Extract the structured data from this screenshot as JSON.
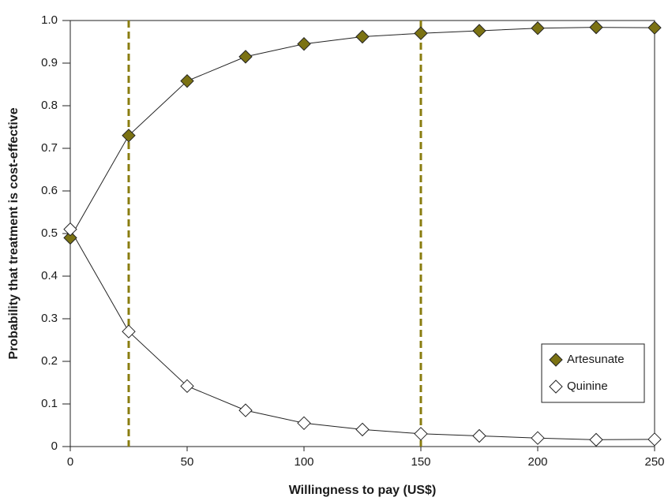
{
  "chart_data": {
    "type": "line",
    "x_label": "Willingness to pay (US$)",
    "y_label": "Probability that treatment is cost-effective",
    "x": [
      0,
      25,
      50,
      75,
      100,
      125,
      150,
      175,
      200,
      225,
      250
    ],
    "series": [
      {
        "name": "Artesunate",
        "color": "#7b7213",
        "values": [
          0.49,
          0.73,
          0.858,
          0.915,
          0.945,
          0.962,
          0.97,
          0.976,
          0.982,
          0.984,
          0.983
        ]
      },
      {
        "name": "Quinine",
        "color": "#ffffff",
        "values": [
          0.51,
          0.27,
          0.142,
          0.085,
          0.055,
          0.04,
          0.03,
          0.025,
          0.02,
          0.016,
          0.017
        ]
      }
    ],
    "reference_lines": {
      "x": [
        25,
        150
      ],
      "color": "#8a7d10"
    },
    "xlim": [
      0,
      250
    ],
    "xticks": [
      0,
      50,
      100,
      150,
      200,
      250
    ],
    "ylim": [
      0,
      1
    ],
    "yticks": [
      0,
      0.1,
      0.2,
      0.3,
      0.4,
      0.5,
      0.6,
      0.7,
      0.8,
      0.9,
      {
        "value": 1,
        "label": "1.0"
      }
    ],
    "legend": "lower right",
    "grid": false
  }
}
